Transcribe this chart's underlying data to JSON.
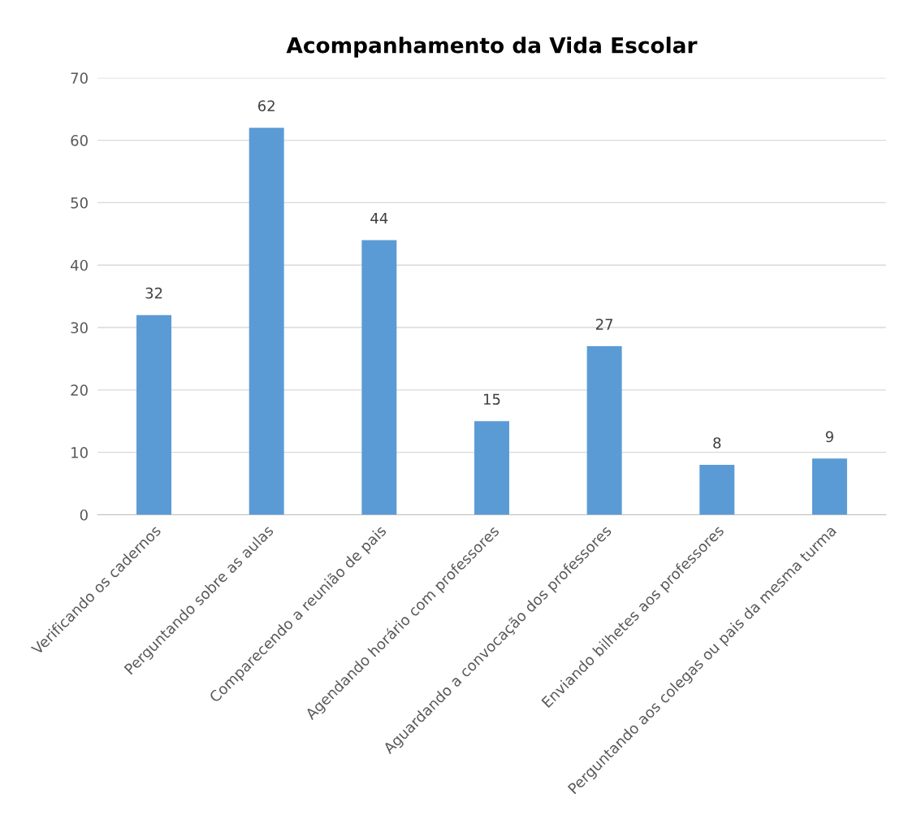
{
  "chart_data": {
    "type": "bar",
    "title": "Acompanhamento da Vida Escolar",
    "categories": [
      "Verificando os cadernos",
      "Perguntando sobre as aulas",
      "Comparecendo a reunião de pais",
      "Agendando horário com professores",
      "Aguardando a convocação dos professores",
      "Enviando bilhetes aos professores",
      "Perguntando aos colegas ou pais da mesma turma"
    ],
    "values": [
      32,
      62,
      44,
      15,
      27,
      8,
      9
    ],
    "color": "#5b9bd5",
    "ylim": [
      0,
      70
    ],
    "yticks": [
      0,
      10,
      20,
      30,
      40,
      50,
      60,
      70
    ],
    "grid": "y",
    "data_labels": true
  }
}
